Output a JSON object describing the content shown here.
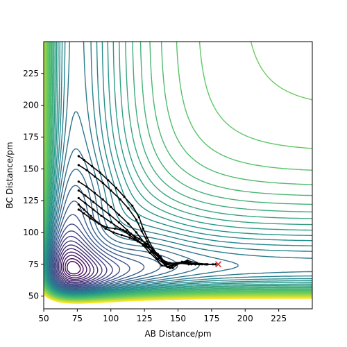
{
  "chart_data": {
    "type": "contour",
    "xlabel": "AB Distance/pm",
    "ylabel": "BC Distance/pm",
    "xlim": [
      50,
      250
    ],
    "ylim": [
      40,
      250
    ],
    "xticks": [
      50,
      75,
      100,
      125,
      150,
      175,
      200,
      225
    ],
    "yticks": [
      50,
      75,
      100,
      125,
      150,
      175,
      200,
      225
    ],
    "grid": false,
    "colormap": [
      "#440154",
      "#3b528b",
      "#21918c",
      "#5ec962",
      "#fde725"
    ],
    "contour_levels": 40,
    "surface": {
      "type": "LEPS-like potential energy surface",
      "minimum_AB": 74,
      "minimum_BC": 74
    },
    "trajectories": [
      {
        "points": [
          [
            76,
            160
          ],
          [
            80,
            157
          ],
          [
            86,
            152
          ],
          [
            92,
            147
          ],
          [
            98,
            141
          ],
          [
            104,
            135
          ],
          [
            110,
            128
          ],
          [
            116,
            121
          ],
          [
            121,
            112
          ],
          [
            124,
            103
          ],
          [
            127,
            96
          ],
          [
            131,
            88
          ],
          [
            135,
            82
          ],
          [
            139,
            78
          ],
          [
            144,
            76
          ],
          [
            150,
            76
          ],
          [
            158,
            75
          ],
          [
            166,
            75
          ],
          [
            172,
            75
          ],
          [
            178,
            75
          ]
        ]
      },
      {
        "points": [
          [
            76,
            153
          ],
          [
            82,
            149
          ],
          [
            88,
            144
          ],
          [
            94,
            139
          ],
          [
            100,
            133
          ],
          [
            107,
            126
          ],
          [
            113,
            119
          ],
          [
            119,
            110
          ],
          [
            123,
            101
          ],
          [
            127,
            93
          ],
          [
            131,
            86
          ],
          [
            136,
            80
          ],
          [
            141,
            76
          ],
          [
            147,
            75
          ],
          [
            155,
            76
          ],
          [
            163,
            75
          ],
          [
            171,
            75
          ],
          [
            178,
            75
          ]
        ]
      },
      {
        "points": [
          [
            76,
            140
          ],
          [
            82,
            136
          ],
          [
            88,
            131
          ],
          [
            94,
            126
          ],
          [
            100,
            120
          ],
          [
            106,
            114
          ],
          [
            113,
            107
          ],
          [
            119,
            100
          ],
          [
            125,
            92
          ],
          [
            130,
            85
          ],
          [
            135,
            79
          ],
          [
            140,
            75
          ],
          [
            146,
            74
          ],
          [
            153,
            76
          ],
          [
            160,
            75
          ],
          [
            168,
            75
          ],
          [
            176,
            75
          ]
        ]
      },
      {
        "points": [
          [
            76,
            133
          ],
          [
            81,
            129
          ],
          [
            87,
            124
          ],
          [
            93,
            119
          ],
          [
            99,
            114
          ],
          [
            106,
            108
          ],
          [
            112,
            102
          ],
          [
            118,
            96
          ],
          [
            124,
            90
          ],
          [
            129,
            84
          ],
          [
            134,
            79
          ],
          [
            138,
            74
          ],
          [
            143,
            73
          ],
          [
            149,
            76
          ],
          [
            156,
            77
          ],
          [
            163,
            75
          ],
          [
            171,
            75
          ]
        ]
      },
      {
        "points": [
          [
            76,
            127
          ],
          [
            81,
            123
          ],
          [
            87,
            118
          ],
          [
            93,
            113
          ],
          [
            100,
            108
          ],
          [
            107,
            103
          ],
          [
            114,
            98
          ],
          [
            120,
            93
          ],
          [
            126,
            89
          ],
          [
            131,
            85
          ],
          [
            136,
            80
          ],
          [
            140,
            76
          ],
          [
            145,
            74
          ],
          [
            151,
            76
          ],
          [
            157,
            78
          ],
          [
            164,
            76
          ],
          [
            172,
            75
          ]
        ]
      },
      {
        "points": [
          [
            76,
            122
          ],
          [
            80,
            118
          ],
          [
            85,
            113
          ],
          [
            90,
            108
          ],
          [
            96,
            103
          ],
          [
            102,
            100
          ],
          [
            108,
            98
          ],
          [
            114,
            96
          ],
          [
            120,
            93
          ],
          [
            126,
            90
          ],
          [
            131,
            87
          ],
          [
            135,
            83
          ],
          [
            138,
            78
          ],
          [
            141,
            74
          ],
          [
            144,
            72
          ],
          [
            148,
            75
          ],
          [
            153,
            77
          ],
          [
            159,
            76
          ],
          [
            166,
            75
          ]
        ]
      },
      {
        "points": [
          [
            76,
            118
          ],
          [
            80,
            115
          ],
          [
            85,
            111
          ],
          [
            91,
            107
          ],
          [
            97,
            104
          ],
          [
            103,
            103
          ],
          [
            109,
            102
          ],
          [
            115,
            99
          ],
          [
            121,
            95
          ],
          [
            127,
            91
          ],
          [
            132,
            86
          ],
          [
            137,
            81
          ],
          [
            140,
            77
          ],
          [
            142,
            73
          ],
          [
            146,
            72
          ],
          [
            151,
            76
          ],
          [
            157,
            77
          ],
          [
            163,
            75
          ],
          [
            170,
            75
          ]
        ]
      }
    ],
    "marker": {
      "x": 180,
      "y": 75,
      "symbol": "x",
      "color": "#d62728"
    }
  }
}
